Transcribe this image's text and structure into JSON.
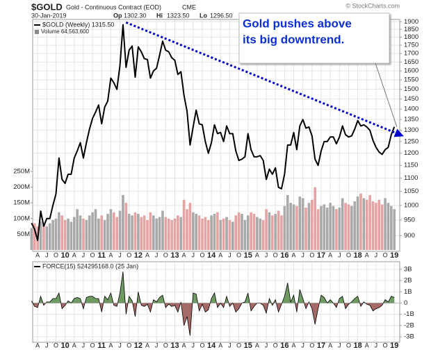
{
  "chart_data": {
    "type": "line",
    "symbol": "$GOLD",
    "description": "Gold - Continuous Contract (EOD)",
    "exchange": "CME",
    "date": "30-Jan-2019",
    "quote": [
      {
        "label": "Op",
        "value": "1302.30"
      },
      {
        "label": "Hi",
        "value": "1323.50"
      },
      {
        "label": "Lo",
        "value": "1296.50"
      }
    ],
    "copyright": "© StockCharts.com",
    "price_legend": "$GOLD (Weekly) 1315.50",
    "volume_legend": "Volume 64,563,600",
    "force_legend": "FORCE(15) 524295168.0 (25 Jan)",
    "annotation": [
      "Gold pushes above",
      "its big downtrend."
    ],
    "log_scale": true,
    "grid": true,
    "color": "#000000",
    "trendline_color": "#0000cc",
    "volume_colors": {
      "up": "#a9a9a9",
      "down": "#e6a3a3"
    },
    "force_colors": {
      "positive": "#6f9a63",
      "negative": "#a56a68"
    },
    "xlim": [
      "2009-01",
      "2019-03"
    ],
    "ylim": [
      860,
      1915
    ],
    "yticks": [
      900,
      950,
      1000,
      1050,
      1100,
      1150,
      1200,
      1250,
      1300,
      1350,
      1400,
      1450,
      1500,
      1550,
      1600,
      1650,
      1700,
      1750,
      1800,
      1850,
      1900
    ],
    "volume_ylim": [
      0,
      250000000
    ],
    "volume_ticks": [
      {
        "value": 50000000.0,
        "label": "50M"
      },
      {
        "value": 100000000.0,
        "label": "100M"
      },
      {
        "value": 150000000.0,
        "label": "150M"
      },
      {
        "value": 200000000.0,
        "label": "200M"
      },
      {
        "value": 250000000.0,
        "label": "250M"
      }
    ],
    "force_ylim": [
      -3300000000,
      3300000000
    ],
    "force_ticks": [
      {
        "value": 3000000000.0,
        "label": "3B"
      },
      {
        "value": 2000000000.0,
        "label": "2B"
      },
      {
        "value": 1000000000.0,
        "label": "1B"
      },
      0,
      {
        "value": -1000000000.0,
        "label": "-1B"
      },
      {
        "value": -2000000000.0,
        "label": "-2B"
      },
      {
        "value": -3000000000.0,
        "label": "-3B"
      }
    ],
    "trendline": {
      "x": [
        "2011-09",
        "2019-02"
      ],
      "values": [
        1895,
        1285
      ]
    },
    "xticks": [
      {
        "value": "2009-04",
        "label": "A"
      },
      {
        "value": "2009-07",
        "label": "J"
      },
      {
        "value": "2009-10",
        "label": "O"
      },
      {
        "value": "2010-01",
        "label": "10"
      },
      {
        "value": "2010-04",
        "label": "A"
      },
      {
        "value": "2010-07",
        "label": "J"
      },
      {
        "value": "2010-10",
        "label": "O"
      },
      {
        "value": "2011-01",
        "label": "11"
      },
      {
        "value": "2011-04",
        "label": "A"
      },
      {
        "value": "2011-07",
        "label": "J"
      },
      {
        "value": "2011-10",
        "label": "O"
      },
      {
        "value": "2012-01",
        "label": "12"
      },
      {
        "value": "2012-04",
        "label": "A"
      },
      {
        "value": "2012-07",
        "label": "J"
      },
      {
        "value": "2012-10",
        "label": "O"
      },
      {
        "value": "2013-01",
        "label": "13"
      },
      {
        "value": "2013-04",
        "label": "A"
      },
      {
        "value": "2013-07",
        "label": "J"
      },
      {
        "value": "2013-10",
        "label": "O"
      },
      {
        "value": "2014-01",
        "label": "14"
      },
      {
        "value": "2014-04",
        "label": "A"
      },
      {
        "value": "2014-07",
        "label": "J"
      },
      {
        "value": "2014-10",
        "label": "O"
      },
      {
        "value": "2015-01",
        "label": "15"
      },
      {
        "value": "2015-04",
        "label": "A"
      },
      {
        "value": "2015-07",
        "label": "J"
      },
      {
        "value": "2015-10",
        "label": "O"
      },
      {
        "value": "2016-01",
        "label": "16"
      },
      {
        "value": "2016-04",
        "label": "A"
      },
      {
        "value": "2016-07",
        "label": "J"
      },
      {
        "value": "2016-10",
        "label": "O"
      },
      {
        "value": "2017-01",
        "label": "17"
      },
      {
        "value": "2017-04",
        "label": "A"
      },
      {
        "value": "2017-07",
        "label": "J"
      },
      {
        "value": "2017-10",
        "label": "O"
      },
      {
        "value": "2018-01",
        "label": "18"
      },
      {
        "value": "2018-04",
        "label": "A"
      },
      {
        "value": "2018-07",
        "label": "J"
      },
      {
        "value": "2018-10",
        "label": "O"
      },
      {
        "value": "2019-01",
        "label": "19"
      }
    ],
    "x": [
      "2009-02",
      "2009-03",
      "2009-04",
      "2009-05",
      "2009-06",
      "2009-07",
      "2009-08",
      "2009-09",
      "2009-10",
      "2009-11",
      "2009-12",
      "2010-01",
      "2010-02",
      "2010-03",
      "2010-04",
      "2010-05",
      "2010-06",
      "2010-07",
      "2010-08",
      "2010-09",
      "2010-10",
      "2010-11",
      "2010-12",
      "2011-01",
      "2011-02",
      "2011-03",
      "2011-04",
      "2011-05",
      "2011-06",
      "2011-07",
      "2011-08",
      "2011-09",
      "2011-10",
      "2011-11",
      "2011-12",
      "2012-01",
      "2012-02",
      "2012-03",
      "2012-04",
      "2012-05",
      "2012-06",
      "2012-07",
      "2012-08",
      "2012-09",
      "2012-10",
      "2012-11",
      "2012-12",
      "2013-01",
      "2013-02",
      "2013-03",
      "2013-04",
      "2013-05",
      "2013-06",
      "2013-07",
      "2013-08",
      "2013-09",
      "2013-10",
      "2013-11",
      "2013-12",
      "2014-01",
      "2014-02",
      "2014-03",
      "2014-04",
      "2014-05",
      "2014-06",
      "2014-07",
      "2014-08",
      "2014-09",
      "2014-10",
      "2014-11",
      "2014-12",
      "2015-01",
      "2015-02",
      "2015-03",
      "2015-04",
      "2015-05",
      "2015-06",
      "2015-07",
      "2015-08",
      "2015-09",
      "2015-10",
      "2015-11",
      "2015-12",
      "2016-01",
      "2016-02",
      "2016-03",
      "2016-04",
      "2016-05",
      "2016-06",
      "2016-07",
      "2016-08",
      "2016-09",
      "2016-10",
      "2016-11",
      "2016-12",
      "2017-01",
      "2017-02",
      "2017-03",
      "2017-04",
      "2017-05",
      "2017-06",
      "2017-07",
      "2017-08",
      "2017-09",
      "2017-10",
      "2017-11",
      "2017-12",
      "2018-01",
      "2018-02",
      "2018-03",
      "2018-04",
      "2018-05",
      "2018-06",
      "2018-07",
      "2018-08",
      "2018-09",
      "2018-10",
      "2018-11",
      "2018-12",
      "2019-01"
    ],
    "values": [
      940,
      920,
      885,
      980,
      930,
      955,
      955,
      1000,
      1040,
      1180,
      1095,
      1080,
      1115,
      1115,
      1180,
      1210,
      1245,
      1180,
      1245,
      1305,
      1355,
      1385,
      1420,
      1330,
      1410,
      1440,
      1560,
      1535,
      1500,
      1630,
      1880,
      1620,
      1720,
      1745,
      1565,
      1740,
      1710,
      1670,
      1665,
      1560,
      1600,
      1615,
      1690,
      1775,
      1720,
      1710,
      1675,
      1660,
      1580,
      1595,
      1470,
      1390,
      1235,
      1315,
      1395,
      1330,
      1325,
      1250,
      1200,
      1245,
      1325,
      1285,
      1290,
      1250,
      1320,
      1285,
      1285,
      1210,
      1170,
      1175,
      1185,
      1285,
      1215,
      1185,
      1185,
      1190,
      1170,
      1095,
      1135,
      1115,
      1140,
      1065,
      1060,
      1115,
      1235,
      1235,
      1290,
      1215,
      1320,
      1350,
      1310,
      1315,
      1275,
      1175,
      1150,
      1210,
      1250,
      1250,
      1270,
      1270,
      1240,
      1270,
      1320,
      1280,
      1270,
      1275,
      1305,
      1345,
      1320,
      1325,
      1315,
      1300,
      1255,
      1225,
      1205,
      1195,
      1215,
      1225,
      1280,
      1315.5
    ],
    "volume": [
      70000000.0,
      85000000.0,
      75000000.0,
      90000000.0,
      80000000.0,
      75000000.0,
      85000000.0,
      95000000.0,
      100000000.0,
      120000000.0,
      110000000.0,
      95000000.0,
      100000000.0,
      90000000.0,
      105000000.0,
      130000000.0,
      110000000.0,
      100000000.0,
      95000000.0,
      110000000.0,
      120000000.0,
      130000000.0,
      100000000.0,
      110000000.0,
      95000000.0,
      115000000.0,
      130000000.0,
      120000000.0,
      105000000.0,
      125000000.0,
      175000000.0,
      150000000.0,
      115000000.0,
      110000000.0,
      120000000.0,
      115000000.0,
      105000000.0,
      110000000.0,
      95000000.0,
      120000000.0,
      110000000.0,
      100000000.0,
      105000000.0,
      125000000.0,
      105000000.0,
      100000000.0,
      95000000.0,
      100000000.0,
      110000000.0,
      105000000.0,
      160000000.0,
      130000000.0,
      150000000.0,
      120000000.0,
      115000000.0,
      110000000.0,
      100000000.0,
      105000000.0,
      95000000.0,
      110000000.0,
      115000000.0,
      120000000.0,
      95000000.0,
      100000000.0,
      105000000.0,
      95000000.0,
      90000000.0,
      110000000.0,
      120000000.0,
      115000000.0,
      95000000.0,
      110000000.0,
      120000000.0,
      115000000.0,
      105000000.0,
      100000000.0,
      95000000.0,
      130000000.0,
      120000000.0,
      110000000.0,
      115000000.0,
      125000000.0,
      110000000.0,
      140000000.0,
      175000000.0,
      150000000.0,
      145000000.0,
      140000000.0,
      170000000.0,
      165000000.0,
      135000000.0,
      150000000.0,
      160000000.0,
      200000000.0,
      130000000.0,
      140000000.0,
      145000000.0,
      135000000.0,
      150000000.0,
      140000000.0,
      130000000.0,
      135000000.0,
      165000000.0,
      150000000.0,
      145000000.0,
      140000000.0,
      155000000.0,
      170000000.0,
      180000000.0,
      165000000.0,
      160000000.0,
      175000000.0,
      155000000.0,
      150000000.0,
      160000000.0,
      145000000.0,
      165000000.0,
      150000000.0,
      140000000.0,
      130000000.0
    ],
    "force": [
      200000000.0,
      -300000000.0,
      -400000000.0,
      600000000.0,
      -200000000.0,
      100000000.0,
      100000000.0,
      400000000.0,
      400000000.0,
      900000000.0,
      -500000000.0,
      -200000000.0,
      200000000.0,
      0,
      400000000.0,
      500000000.0,
      400000000.0,
      -500000000.0,
      500000000.0,
      600000000.0,
      600000000.0,
      400000000.0,
      400000000.0,
      -800000000.0,
      600000000.0,
      300000000.0,
      900000000.0,
      -200000000.0,
      -300000000.0,
      900000000.0,
      2800000000.0,
      -1000000000.0,
      600000000.0,
      200000000.0,
      -1200000000.0,
      1000000000.0,
      -200000000.0,
      -300000000.0,
      -100000000.0,
      -800000000.0,
      300000000.0,
      100000000.0,
      500000000.0,
      700000000.0,
      -400000000.0,
      -100000000.0,
      -300000000.0,
      -200000000.0,
      -800000000.0,
      100000000.0,
      -2000000000.0,
      -1200000000.0,
      -2900000000.0,
      900000000.0,
      800000000.0,
      -700000000.0,
      -100000000.0,
      -800000000.0,
      -600000000.0,
      400000000.0,
      900000000.0,
      -400000000.0,
      0,
      -400000000.0,
      600000000.0,
      -300000000.0,
      0,
      -800000000.0,
      -500000000.0,
      0,
      100000000.0,
      900000000.0,
      -700000000.0,
      -300000000.0,
      0,
      0,
      -200000000.0,
      -900000000.0,
      400000000.0,
      -200000000.0,
      300000000.0,
      -800000000.0,
      -100000000.0,
      600000000.0,
      1800000000.0,
      100000000.0,
      700000000.0,
      -800000000.0,
      1200000000.0,
      400000000.0,
      -500000000.0,
      100000000.0,
      -500000000.0,
      -1900000000.0,
      -500000000.0,
      700000000.0,
      500000000.0,
      0,
      300000000.0,
      0,
      -400000000.0,
      400000000.0,
      600000000.0,
      -500000000.0,
      -100000000.0,
      100000000.0,
      400000000.0,
      600000000.0,
      -300000000.0,
      100000000.0,
      -100000000.0,
      -200000000.0,
      -700000000.0,
      -500000000.0,
      -400000000.0,
      -200000000.0,
      300000000.0,
      100000000.0,
      600000000.0,
      500000000.0
    ]
  }
}
